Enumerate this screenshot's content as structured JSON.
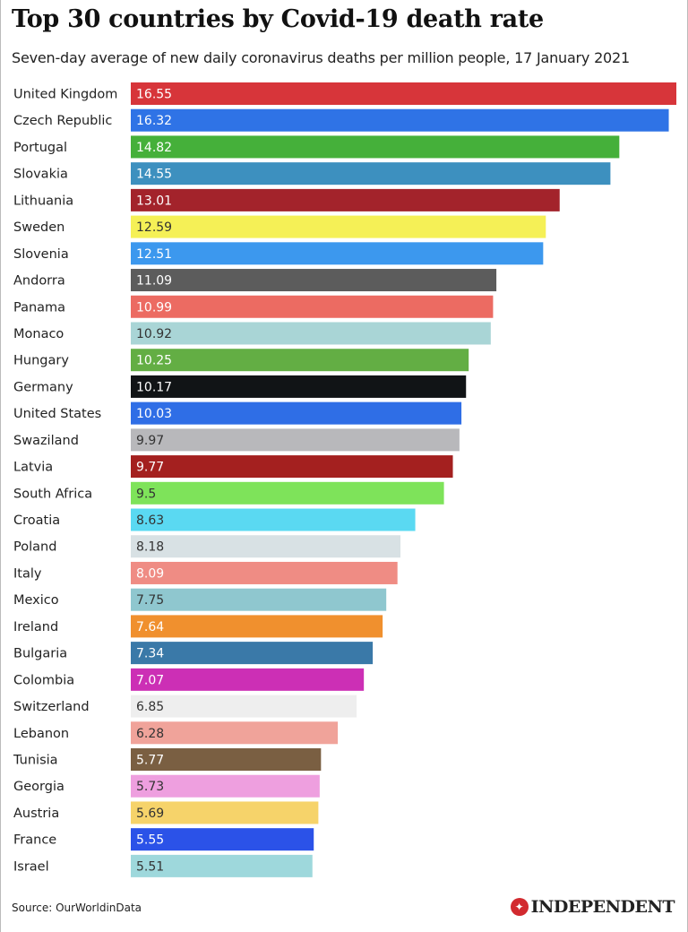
{
  "chart_data": {
    "type": "bar",
    "orientation": "horizontal",
    "title": "Top 30 countries by Covid-19 death rate",
    "subtitle": "Seven-day average of new daily coronavirus deaths per million people, 17 January 2021",
    "xlabel": "",
    "ylabel": "",
    "xlim": [
      0,
      16.55
    ],
    "grid": false,
    "categories": [
      "United Kingdom",
      "Czech Republic",
      "Portugal",
      "Slovakia",
      "Lithuania",
      "Sweden",
      "Slovenia",
      "Andorra",
      "Panama",
      "Monaco",
      "Hungary",
      "Germany",
      "United States",
      "Swaziland",
      "Latvia",
      "South Africa",
      "Croatia",
      "Poland",
      "Italy",
      "Mexico",
      "Ireland",
      "Bulgaria",
      "Colombia",
      "Switzerland",
      "Lebanon",
      "Tunisia",
      "Georgia",
      "Austria",
      "France",
      "Israel"
    ],
    "values": [
      16.55,
      16.32,
      14.82,
      14.55,
      13.01,
      12.59,
      12.51,
      11.09,
      10.99,
      10.92,
      10.25,
      10.17,
      10.03,
      9.97,
      9.77,
      9.5,
      8.63,
      8.18,
      8.09,
      7.75,
      7.64,
      7.34,
      7.07,
      6.85,
      6.28,
      5.77,
      5.73,
      5.69,
      5.55,
      5.51
    ],
    "value_labels": [
      "16.55",
      "16.32",
      "14.82",
      "14.55",
      "13.01",
      "12.59",
      "12.51",
      "11.09",
      "10.99",
      "10.92",
      "10.25",
      "10.17",
      "10.03",
      "9.97",
      "9.77",
      "9.5",
      "8.63",
      "8.18",
      "8.09",
      "7.75",
      "7.64",
      "7.34",
      "7.07",
      "6.85",
      "6.28",
      "5.77",
      "5.73",
      "5.69",
      "5.55",
      "5.51"
    ],
    "colors": [
      "#d7353a",
      "#2f73e6",
      "#45b03a",
      "#3d90bf",
      "#a3232b",
      "#f5f056",
      "#3c98ee",
      "#5c5c5c",
      "#ec6b62",
      "#a9d5d6",
      "#63ae44",
      "#111416",
      "#2f6ee6",
      "#b8b8bb",
      "#a4201f",
      "#7ee35a",
      "#5ad9f2",
      "#d8e1e4",
      "#ef8c84",
      "#8fc7cf",
      "#f0902e",
      "#3a79a8",
      "#cc2fb5",
      "#eeeeee",
      "#f0a39a",
      "#7a5f42",
      "#ee9fdf",
      "#f6d36a",
      "#2b52e8",
      "#9ed8dc"
    ]
  },
  "footer": {
    "source": "Source: OurWorldinData",
    "logo_text": "INDEPENDENT",
    "logo_color": "#d22a2f"
  }
}
